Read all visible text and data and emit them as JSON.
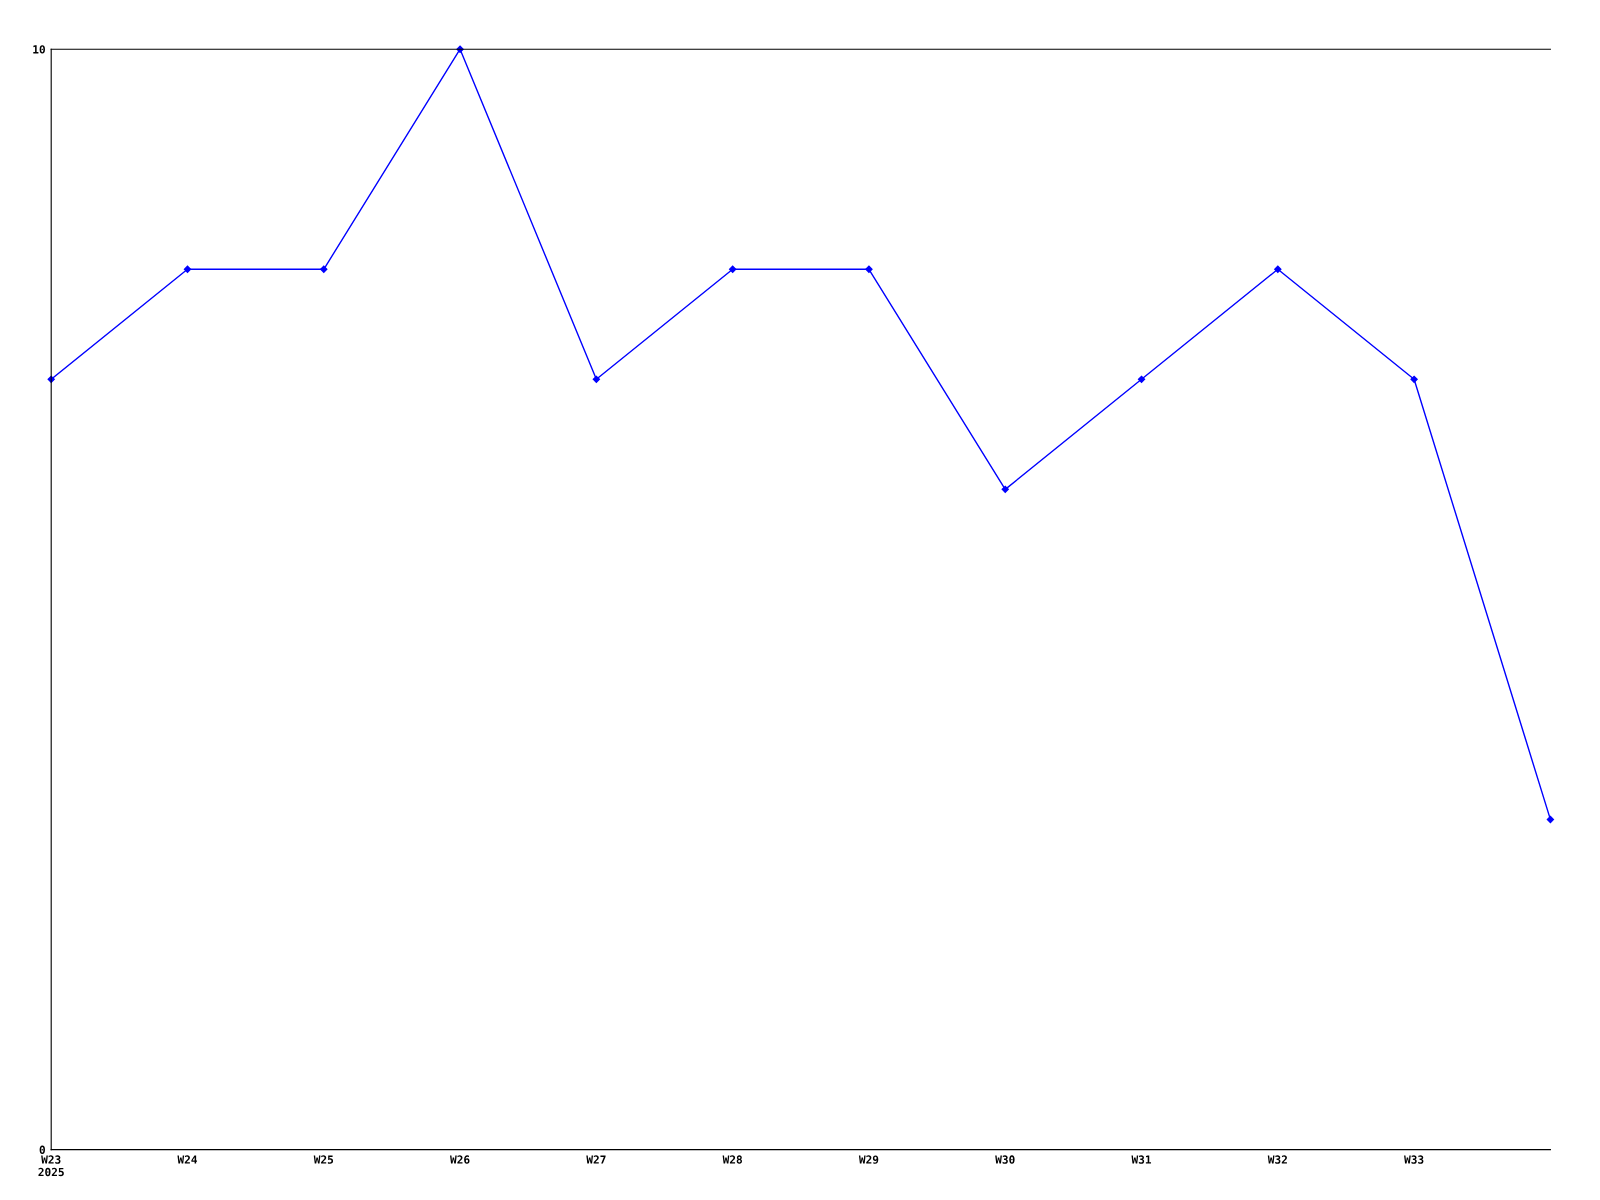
{
  "chart_data": {
    "type": "line",
    "categories": [
      "W23\n2025",
      "W24",
      "W25",
      "W26",
      "W27",
      "W28",
      "W29",
      "W30",
      "W31",
      "W32",
      "W33",
      null
    ],
    "series": [
      {
        "color": "#0000ff",
        "values": [
          7,
          8,
          8,
          10,
          7,
          8,
          8,
          6,
          7,
          8,
          7,
          3
        ]
      }
    ],
    "ylim": [
      0,
      10
    ],
    "yticks": [
      0,
      10
    ],
    "grid": false,
    "marker": "diamond",
    "line_style": "solid"
  }
}
